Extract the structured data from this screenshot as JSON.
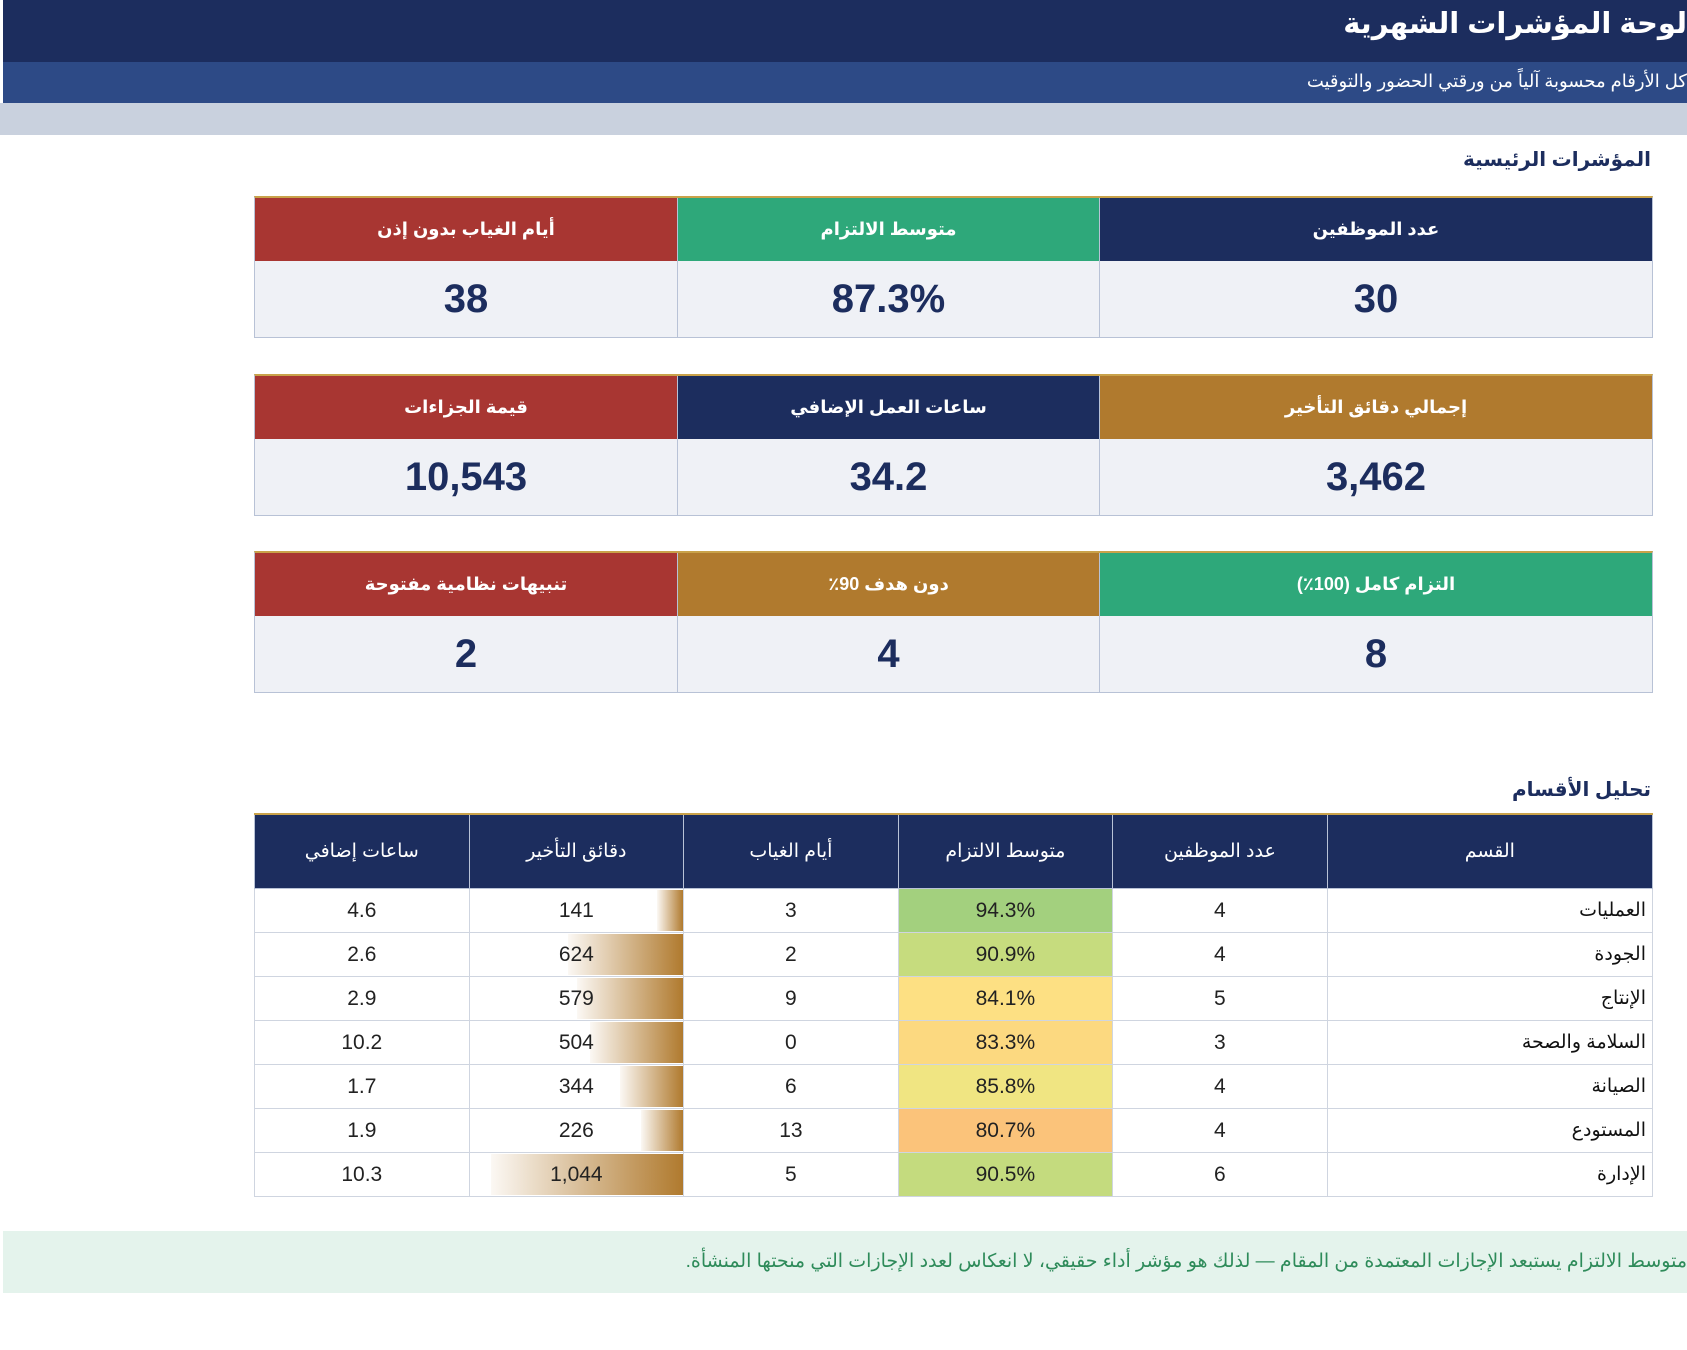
{
  "header": {
    "title": "لوحة المؤشرات الشهرية",
    "subtitle": "كل الأرقام محسوبة آلياً من ورقتي الحضور والتوقيت"
  },
  "kpi_section_title": "المؤشرات الرئيسية",
  "kpi_rows": [
    [
      {
        "label": "عدد الموظفين",
        "value": "30",
        "color": "#1c2d5e"
      },
      {
        "label": "متوسط الالتزام",
        "value": "87.3%",
        "color": "#2ea87a"
      },
      {
        "label": "أيام الغياب بدون إذن",
        "value": "38",
        "color": "#a83632"
      }
    ],
    [
      {
        "label": "إجمالي دقائق التأخير",
        "value": "3,462",
        "color": "#b07a2e"
      },
      {
        "label": "ساعات العمل الإضافي",
        "value": "34.2",
        "color": "#1c2d5e"
      },
      {
        "label": "قيمة الجزاءات",
        "value": "10,543",
        "color": "#a83632"
      }
    ],
    [
      {
        "label": "التزام كامل (100٪)",
        "value": "8",
        "color": "#2ea87a"
      },
      {
        "label": "دون هدف 90٪",
        "value": "4",
        "color": "#b07a2e"
      },
      {
        "label": "تنبيهات نظامية مفتوحة",
        "value": "2",
        "color": "#a83632"
      }
    ]
  ],
  "dept_section_title": "تحليل الأقسام",
  "dept_table": {
    "headers": [
      "القسم",
      "عدد الموظفين",
      "متوسط الالتزام",
      "أيام الغياب",
      "دقائق التأخير",
      "ساعات إضافي"
    ],
    "rows": [
      {
        "name": "العمليات",
        "employees": "4",
        "compliance": "94.3%",
        "compliance_color": "#a3d07e",
        "absence": "3",
        "late": "141",
        "late_value": 141,
        "overtime": "4.6"
      },
      {
        "name": "الجودة",
        "employees": "4",
        "compliance": "90.9%",
        "compliance_color": "#c6dc7e",
        "absence": "2",
        "late": "624",
        "late_value": 624,
        "overtime": "2.6"
      },
      {
        "name": "الإنتاج",
        "employees": "5",
        "compliance": "84.1%",
        "compliance_color": "#fde083",
        "absence": "9",
        "late": "579",
        "late_value": 579,
        "overtime": "2.9"
      },
      {
        "name": "السلامة والصحة",
        "employees": "3",
        "compliance": "83.3%",
        "compliance_color": "#fcd980",
        "absence": "0",
        "late": "504",
        "late_value": 504,
        "overtime": "10.2"
      },
      {
        "name": "الصيانة",
        "employees": "4",
        "compliance": "85.8%",
        "compliance_color": "#f0e582",
        "absence": "6",
        "late": "344",
        "late_value": 344,
        "overtime": "1.7"
      },
      {
        "name": "المستودع",
        "employees": "4",
        "compliance": "80.7%",
        "compliance_color": "#fbc37a",
        "absence": "13",
        "late": "226",
        "late_value": 226,
        "overtime": "1.9"
      },
      {
        "name": "الإدارة",
        "employees": "6",
        "compliance": "90.5%",
        "compliance_color": "#c4db7e",
        "absence": "5",
        "late": "1,044",
        "late_value": 1044,
        "overtime": "10.3"
      }
    ]
  },
  "footer_note": "متوسط الالتزام يستبعد الإجازات المعتمدة من المقام — لذلك هو مؤشر أداء حقيقي، لا انعكاس لعدد الإجازات التي منحتها المنشأة."
}
